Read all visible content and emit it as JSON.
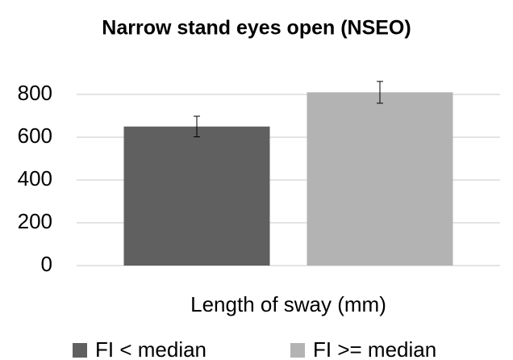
{
  "chart_data": {
    "type": "bar",
    "title": "Narrow stand eyes open (NSEO)",
    "categories": [
      "Length of sway (mm)"
    ],
    "series": [
      {
        "name": "FI < median",
        "color": "#606060",
        "values": [
          650
        ],
        "errors": [
          48
        ]
      },
      {
        "name": "FI >= median",
        "color": "#b3b3b3",
        "values": [
          810
        ],
        "errors": [
          51
        ]
      }
    ],
    "ylim": [
      0,
      800
    ],
    "yticks": [
      0,
      200,
      400,
      600,
      800
    ],
    "grid": true,
    "legend": "bottom"
  }
}
